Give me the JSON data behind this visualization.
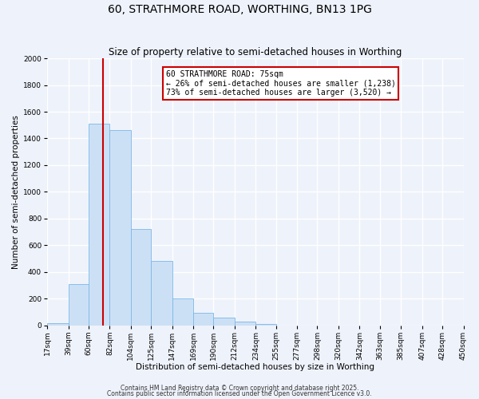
{
  "title": "60, STRATHMORE ROAD, WORTHING, BN13 1PG",
  "subtitle": "Size of property relative to semi-detached houses in Worthing",
  "xlabel": "Distribution of semi-detached houses by size in Worthing",
  "ylabel": "Number of semi-detached properties",
  "bin_labels": [
    "17sqm",
    "39sqm",
    "60sqm",
    "82sqm",
    "104sqm",
    "125sqm",
    "147sqm",
    "169sqm",
    "190sqm",
    "212sqm",
    "234sqm",
    "255sqm",
    "277sqm",
    "298sqm",
    "320sqm",
    "342sqm",
    "363sqm",
    "385sqm",
    "407sqm",
    "428sqm",
    "450sqm"
  ],
  "bin_edges": [
    17,
    39,
    60,
    82,
    104,
    125,
    147,
    169,
    190,
    212,
    234,
    255,
    277,
    298,
    320,
    342,
    363,
    385,
    407,
    428,
    450
  ],
  "bar_heights": [
    15,
    310,
    1510,
    1460,
    720,
    480,
    200,
    90,
    55,
    25,
    10,
    0,
    0,
    0,
    0,
    0,
    0,
    0,
    0,
    0
  ],
  "bar_color": "#cce0f5",
  "bar_edge_color": "#7ab8e8",
  "red_line_x": 75,
  "vline_color": "#cc0000",
  "annotation_text": "60 STRATHMORE ROAD: 75sqm\n← 26% of semi-detached houses are smaller (1,238)\n73% of semi-detached houses are larger (3,520) →",
  "annotation_box_color": "#ffffff",
  "annotation_box_edge": "#cc0000",
  "ylim": [
    0,
    2000
  ],
  "yticks": [
    0,
    200,
    400,
    600,
    800,
    1000,
    1200,
    1400,
    1600,
    1800,
    2000
  ],
  "footer1": "Contains HM Land Registry data © Crown copyright and database right 2025.",
  "footer2": "Contains public sector information licensed under the Open Government Licence v3.0.",
  "bg_color": "#eef2fb",
  "grid_color": "#ffffff",
  "title_fontsize": 10,
  "subtitle_fontsize": 8.5,
  "axis_label_fontsize": 7.5,
  "tick_fontsize": 6.5
}
